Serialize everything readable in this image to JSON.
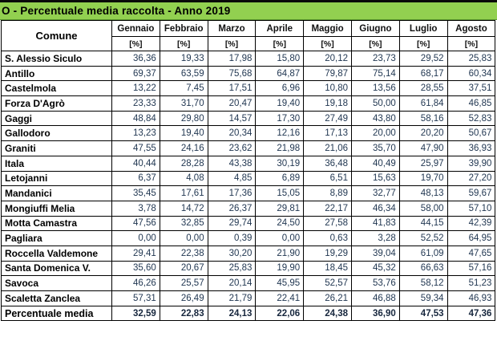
{
  "title": "O - Percentuale media raccolta - Anno 2019",
  "table": {
    "comune_header": "Comune",
    "unit_label": "[%]",
    "months": [
      "Gennaio",
      "Febbraio",
      "Marzo",
      "Aprile",
      "Maggio",
      "Giugno",
      "Luglio",
      "Agosto"
    ],
    "rows": [
      {
        "comune": "S. Alessio Siculo",
        "values": [
          "36,36",
          "19,33",
          "17,98",
          "15,80",
          "20,12",
          "23,73",
          "29,52",
          "25,83"
        ]
      },
      {
        "comune": "Antillo",
        "values": [
          "69,37",
          "63,59",
          "75,68",
          "64,87",
          "79,87",
          "75,14",
          "68,17",
          "60,34"
        ]
      },
      {
        "comune": "Castelmola",
        "values": [
          "13,22",
          "7,45",
          "17,51",
          "6,96",
          "10,80",
          "13,56",
          "28,55",
          "37,51"
        ]
      },
      {
        "comune": "Forza D'Agrò",
        "values": [
          "23,33",
          "31,70",
          "20,47",
          "19,40",
          "19,18",
          "50,00",
          "61,84",
          "46,85"
        ]
      },
      {
        "comune": "Gaggi",
        "values": [
          "48,84",
          "29,80",
          "14,57",
          "17,30",
          "27,49",
          "43,80",
          "58,16",
          "52,83"
        ]
      },
      {
        "comune": "Gallodoro",
        "values": [
          "13,23",
          "19,40",
          "20,34",
          "12,16",
          "17,13",
          "20,00",
          "20,20",
          "50,67"
        ]
      },
      {
        "comune": "Graniti",
        "values": [
          "47,55",
          "24,16",
          "23,62",
          "21,98",
          "21,06",
          "35,70",
          "47,90",
          "36,93"
        ]
      },
      {
        "comune": "Itala",
        "values": [
          "40,44",
          "28,28",
          "43,38",
          "30,19",
          "36,48",
          "40,49",
          "25,97",
          "39,90"
        ]
      },
      {
        "comune": "Letojanni",
        "values": [
          "6,37",
          "4,08",
          "4,85",
          "6,89",
          "6,51",
          "15,63",
          "19,70",
          "27,20"
        ]
      },
      {
        "comune": "Mandanici",
        "values": [
          "35,45",
          "17,61",
          "17,36",
          "15,05",
          "8,89",
          "32,77",
          "48,13",
          "59,67"
        ]
      },
      {
        "comune": "Mongiuffi Melia",
        "values": [
          "3,78",
          "14,72",
          "26,37",
          "29,81",
          "22,17",
          "46,34",
          "58,00",
          "57,10"
        ]
      },
      {
        "comune": "Motta Camastra",
        "values": [
          "47,56",
          "32,85",
          "29,74",
          "24,50",
          "27,58",
          "41,83",
          "44,15",
          "42,39"
        ]
      },
      {
        "comune": "Pagliara",
        "values": [
          "0,00",
          "0,00",
          "0,39",
          "0,00",
          "0,63",
          "3,28",
          "52,52",
          "64,95"
        ]
      },
      {
        "comune": "Roccella Valdemone",
        "values": [
          "29,41",
          "22,38",
          "30,20",
          "21,90",
          "19,29",
          "39,04",
          "61,09",
          "47,65"
        ]
      },
      {
        "comune": "Santa Domenica V.",
        "values": [
          "35,60",
          "20,67",
          "25,83",
          "19,90",
          "18,45",
          "45,32",
          "66,63",
          "57,16"
        ]
      },
      {
        "comune": "Savoca",
        "values": [
          "46,26",
          "25,57",
          "20,14",
          "45,95",
          "52,57",
          "53,76",
          "58,12",
          "51,23"
        ]
      },
      {
        "comune": "Scaletta Zanclea",
        "values": [
          "57,31",
          "26,49",
          "21,79",
          "22,41",
          "26,21",
          "46,88",
          "59,34",
          "46,93"
        ]
      }
    ],
    "summary_row": {
      "comune": "Percentuale media",
      "values": [
        "32,59",
        "22,83",
        "24,13",
        "22,06",
        "24,38",
        "36,90",
        "47,53",
        "47,36"
      ]
    }
  },
  "colors": {
    "header_green": "#92d050",
    "border": "#000000",
    "value_text": "#1f3550"
  }
}
